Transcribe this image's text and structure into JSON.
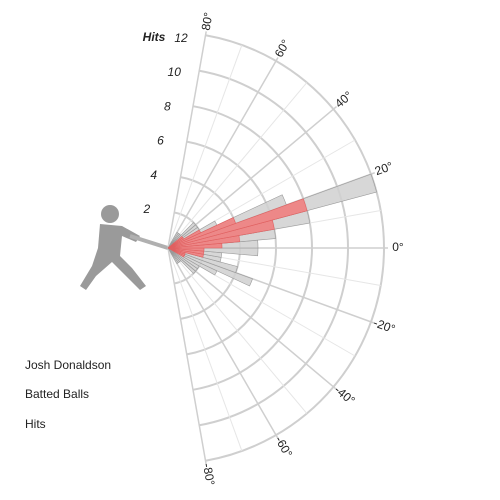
{
  "chart_data": {
    "type": "polar-bar",
    "player": "Josh Donaldson",
    "r_title": "Hits",
    "rlim": [
      0,
      12
    ],
    "rticks": [
      2,
      4,
      6,
      8,
      10,
      12
    ],
    "angle_lim": [
      -80,
      80
    ],
    "angle_ticks": [
      {
        "value": 80,
        "label": "80°"
      },
      {
        "value": 60,
        "label": "60°"
      },
      {
        "value": 40,
        "label": "40°"
      },
      {
        "value": 20,
        "label": "20°"
      },
      {
        "value": 0,
        "label": "0°"
      },
      {
        "value": -20,
        "label": "-20°"
      },
      {
        "value": -40,
        "label": "-40°"
      },
      {
        "value": -60,
        "label": "-60°"
      },
      {
        "value": -80,
        "label": "-80°"
      }
    ],
    "angles": [
      -60,
      -55,
      -50,
      -45,
      -40,
      -35,
      -30,
      -25,
      -20,
      -15,
      -10,
      -5,
      0,
      5,
      10,
      15,
      20,
      25,
      30,
      35,
      40,
      45,
      50,
      55
    ],
    "series": [
      {
        "name": "Batted Balls",
        "color": "#d0d0d0",
        "values": [
          1,
          1,
          1,
          2,
          2,
          2,
          3,
          5,
          4,
          3,
          3,
          5,
          5,
          6,
          8,
          12,
          7,
          3,
          2,
          2,
          2,
          1,
          1,
          1
        ]
      },
      {
        "name": "Hits",
        "color": "#f08080",
        "values": [
          0,
          0,
          0,
          0,
          0,
          0,
          1,
          1,
          1,
          2,
          2,
          2,
          3,
          4,
          6,
          8,
          4,
          2,
          1,
          1,
          0,
          0,
          0,
          0
        ]
      }
    ]
  }
}
